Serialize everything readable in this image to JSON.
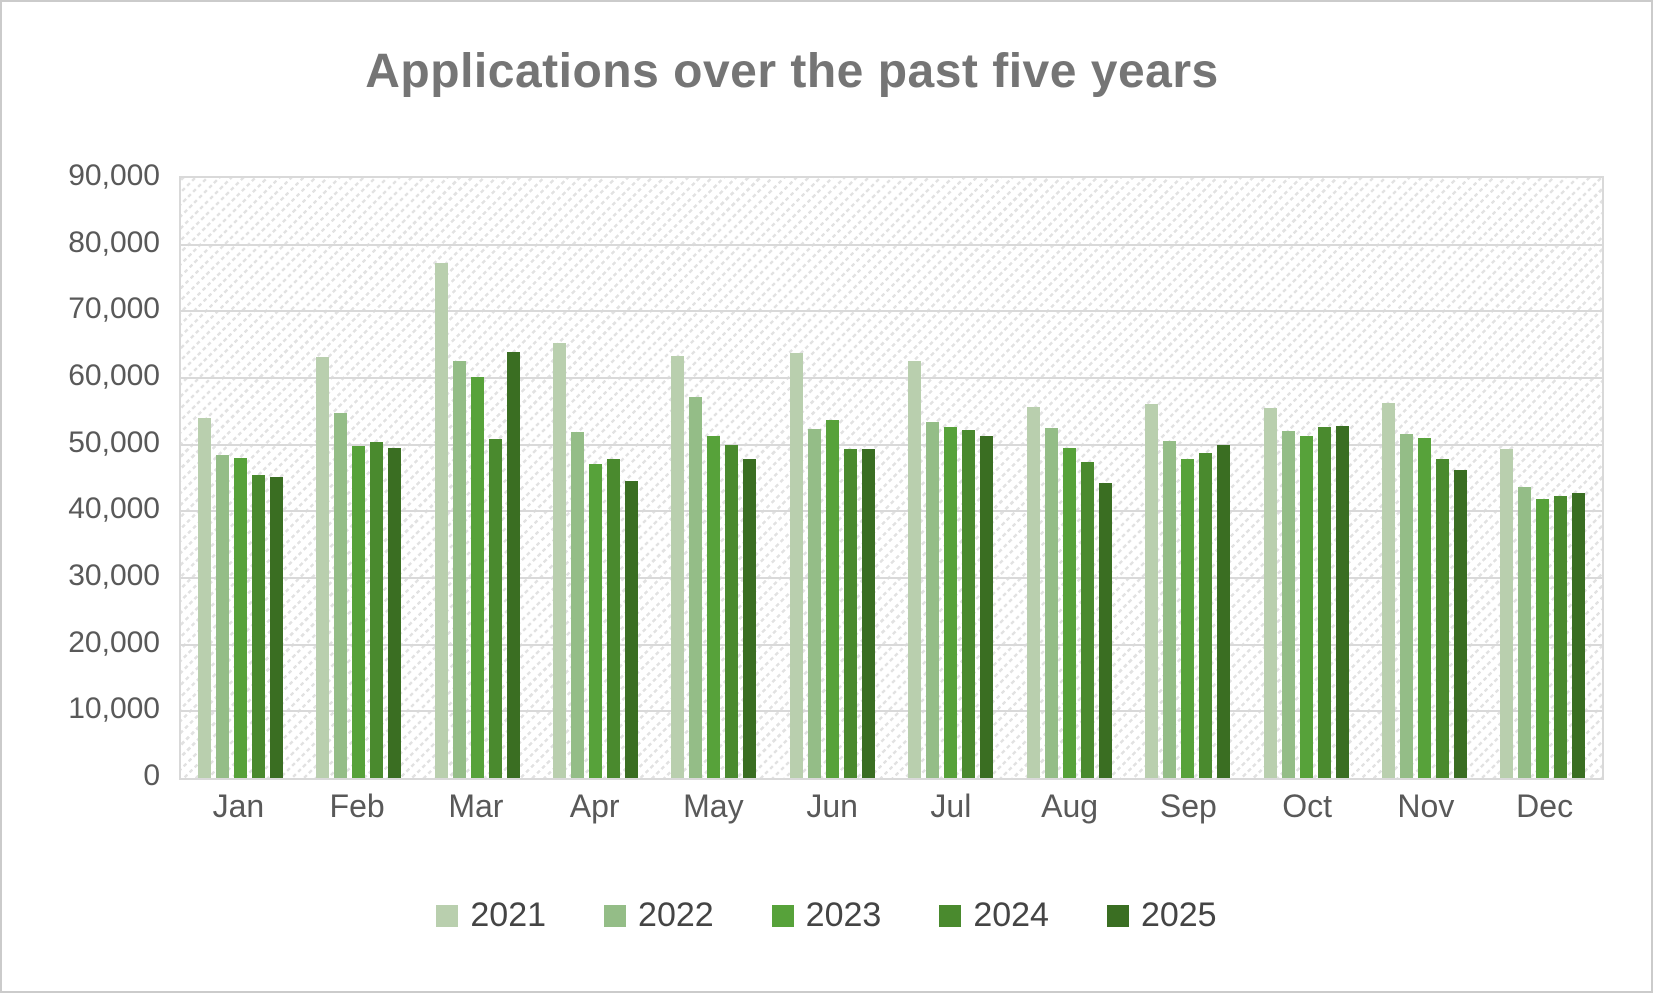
{
  "chart_data": {
    "type": "bar",
    "title": "Applications over the past five years",
    "title_color": "#757575",
    "axis_text_color": "#595959",
    "gridline_color": "#d9d9d9",
    "plot_background": "hatched-light-gray-diagonal",
    "grid": true,
    "legend_position": "bottom",
    "ylim": [
      0,
      90000
    ],
    "yticks": [
      {
        "label": "0",
        "value": 0
      },
      {
        "label": "10,000",
        "value": 10000
      },
      {
        "label": "20,000",
        "value": 20000
      },
      {
        "label": "30,000",
        "value": 30000
      },
      {
        "label": "40,000",
        "value": 40000
      },
      {
        "label": "50,000",
        "value": 50000
      },
      {
        "label": "60,000",
        "value": 60000
      },
      {
        "label": "70,000",
        "value": 70000
      },
      {
        "label": "80,000",
        "value": 80000
      },
      {
        "label": "90,000",
        "value": 90000
      }
    ],
    "categories": [
      "Jan",
      "Feb",
      "Mar",
      "Apr",
      "May",
      "Jun",
      "Jul",
      "Aug",
      "Sep",
      "Oct",
      "Nov",
      "Dec"
    ],
    "series": [
      {
        "name": "2021",
        "color": "#b9cfae",
        "values": [
          54000,
          63200,
          77300,
          65200,
          63300,
          63800,
          62500,
          55600,
          56100,
          55500,
          56300,
          49400
        ]
      },
      {
        "name": "2022",
        "color": "#94bd87",
        "values": [
          48400,
          54800,
          62600,
          51900,
          57200,
          52400,
          53400,
          52500,
          50500,
          52100,
          51600,
          43700
        ]
      },
      {
        "name": "2023",
        "color": "#57a23a",
        "values": [
          48000,
          49800,
          60200,
          47100,
          51300,
          53700,
          52700,
          49500,
          47900,
          51300,
          51000,
          41800
        ]
      },
      {
        "name": "2024",
        "color": "#4a8a2e",
        "values": [
          45500,
          50400,
          50900,
          47900,
          50000,
          49300,
          52200,
          47400,
          48700,
          52600,
          47900,
          42300
        ]
      },
      {
        "name": "2025",
        "color": "#3a6e22",
        "values": [
          45200,
          49500,
          63900,
          44500,
          47800,
          49400,
          51300,
          44300,
          50000,
          52800,
          46200,
          42800
        ]
      }
    ]
  }
}
